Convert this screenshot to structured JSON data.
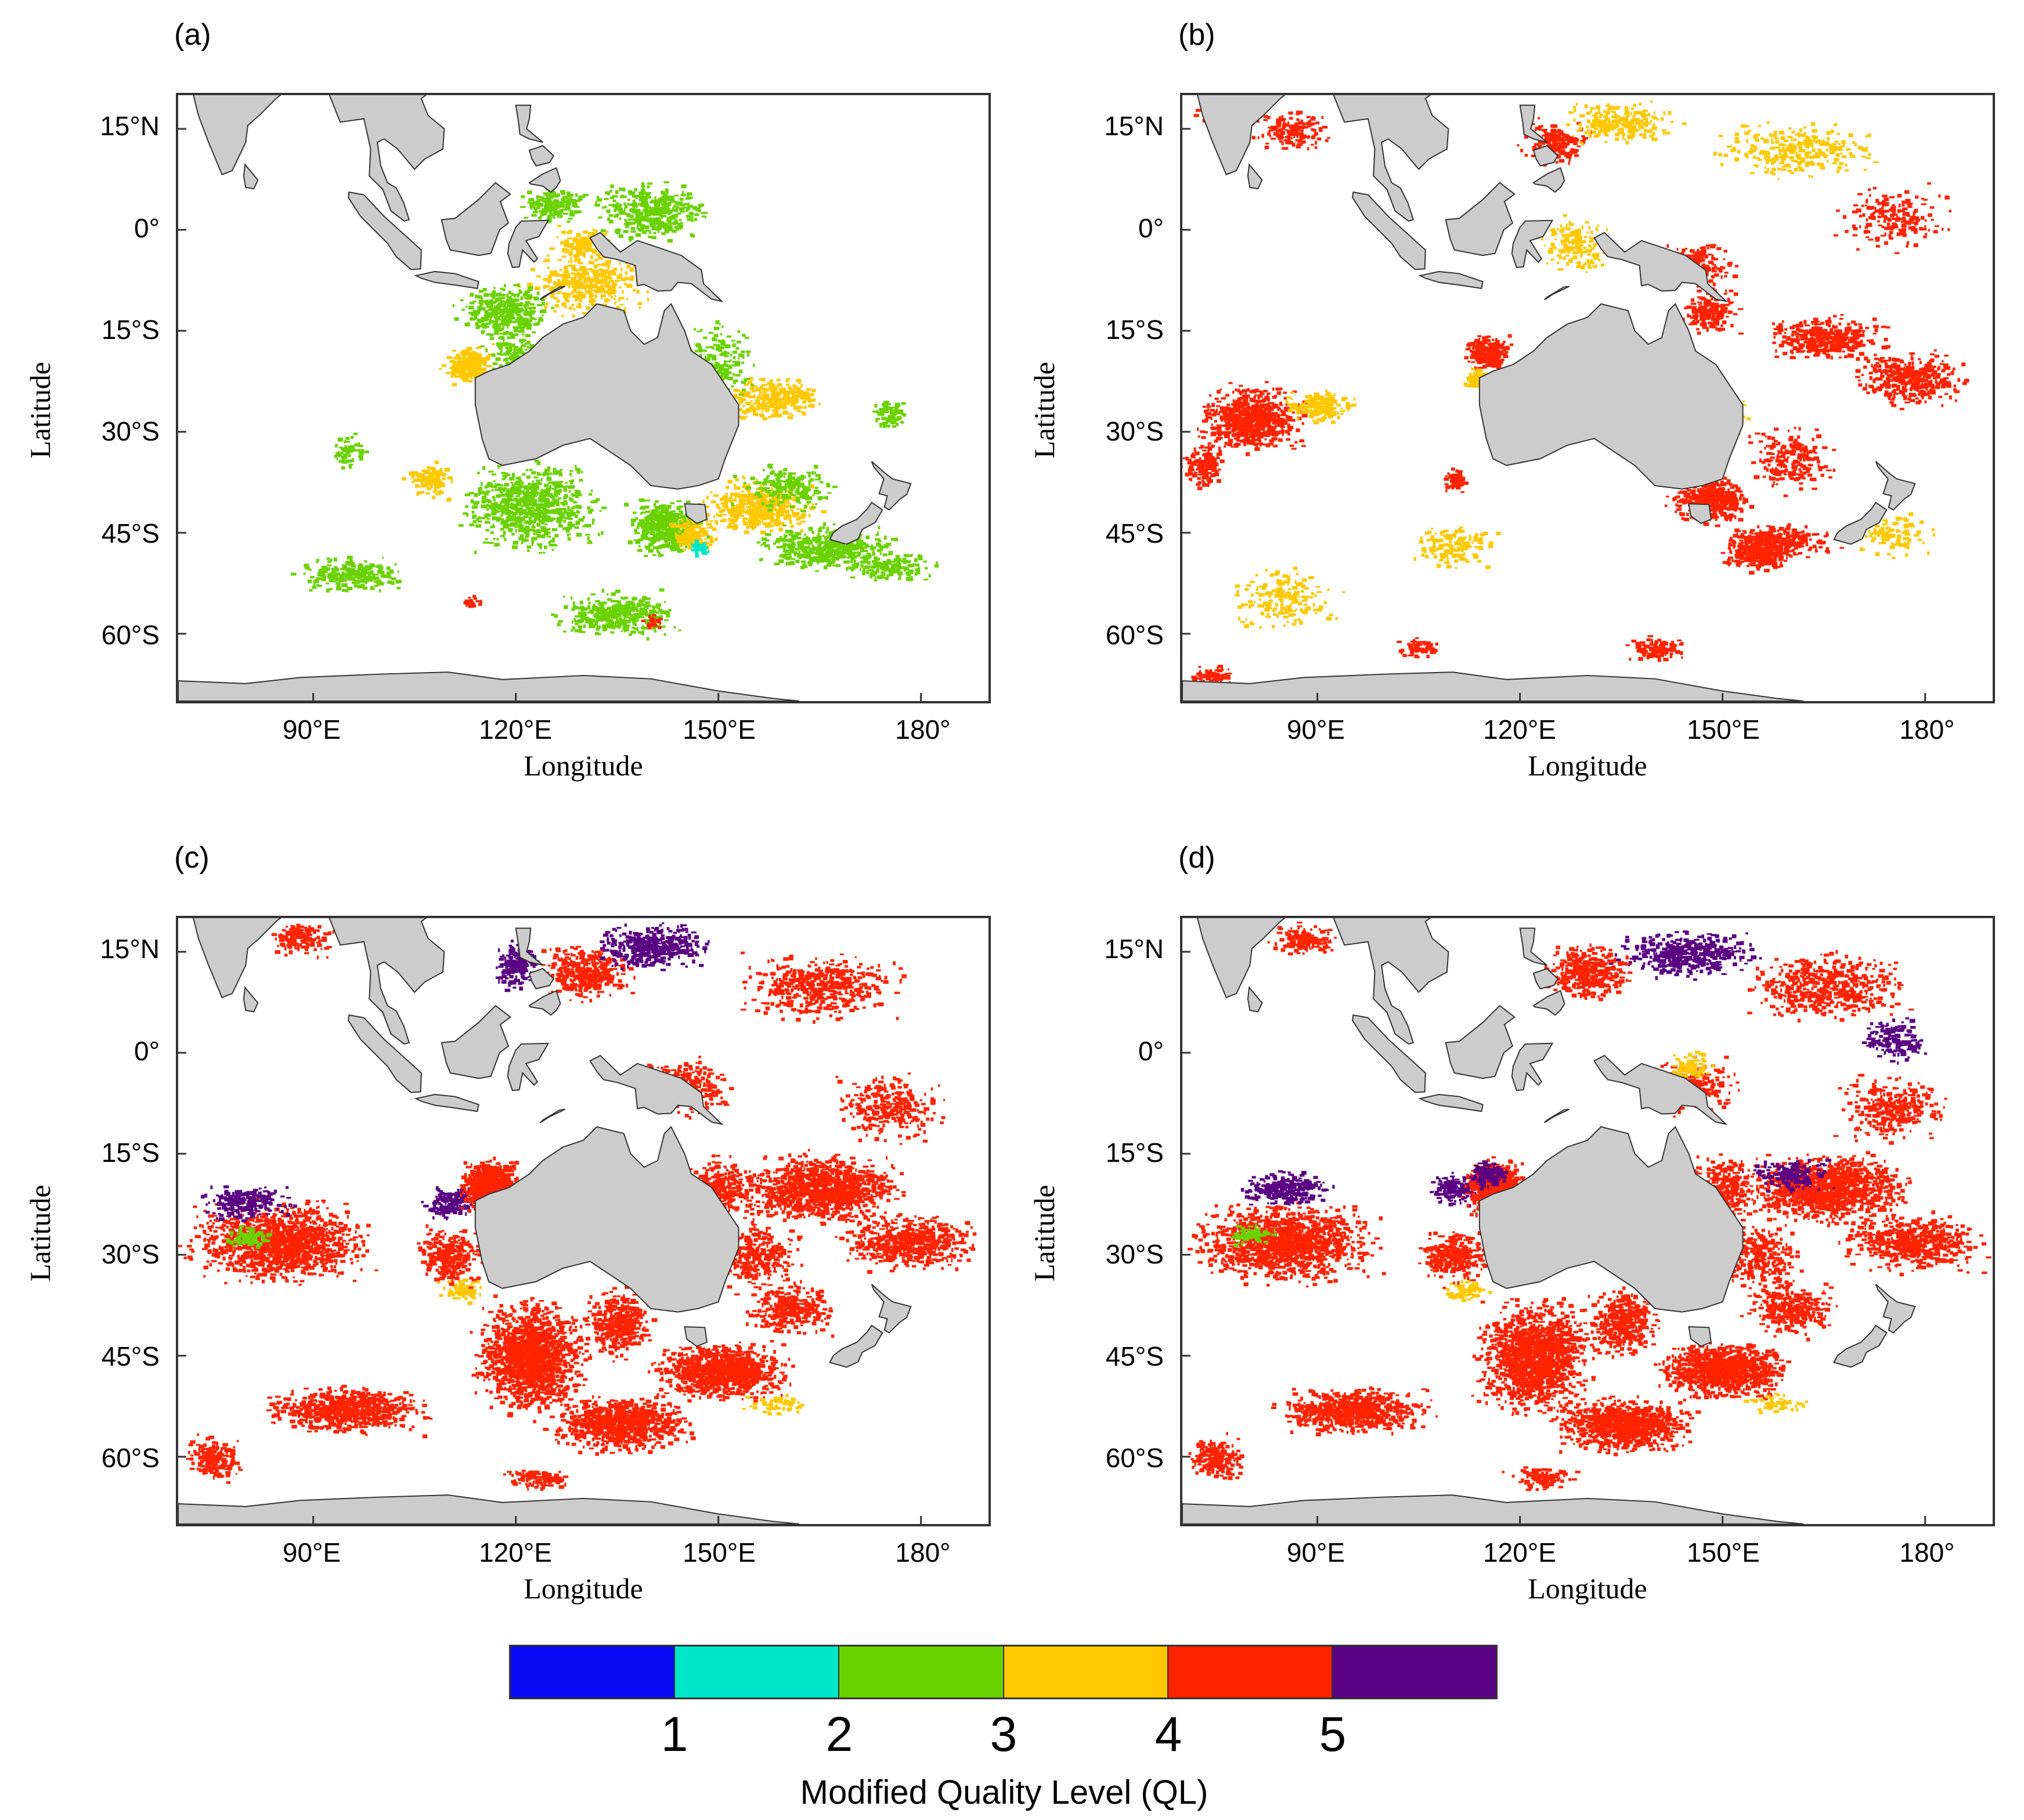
{
  "panels": [
    {
      "label": "(a)",
      "field_kind": "a"
    },
    {
      "label": "(b)",
      "field_kind": "b"
    },
    {
      "label": "(c)",
      "field_kind": "c"
    },
    {
      "label": "(d)",
      "field_kind": "d"
    }
  ],
  "axes": {
    "lat_ticks": [
      "15°N",
      "0°",
      "15°S",
      "30°S",
      "45°S",
      "60°S"
    ],
    "lat_values": [
      15,
      0,
      -15,
      -30,
      -45,
      -60
    ],
    "lon_ticks": [
      "90°E",
      "120°E",
      "150°E",
      "180°"
    ],
    "lon_values": [
      90,
      120,
      150,
      180
    ],
    "xlabel": "Longitude",
    "ylabel": "Latitude",
    "lon_range": [
      70,
      190
    ],
    "lat_range": [
      -70,
      20
    ]
  },
  "colorbar": {
    "title": "Modified Quality Level (QL)",
    "ticks": [
      "1",
      "2",
      "3",
      "4",
      "5"
    ],
    "colors": [
      "#0a0af5",
      "#00e6c8",
      "#6ad200",
      "#ffc800",
      "#ff2300",
      "#5a0082"
    ]
  },
  "land_color": "#cccccc"
}
